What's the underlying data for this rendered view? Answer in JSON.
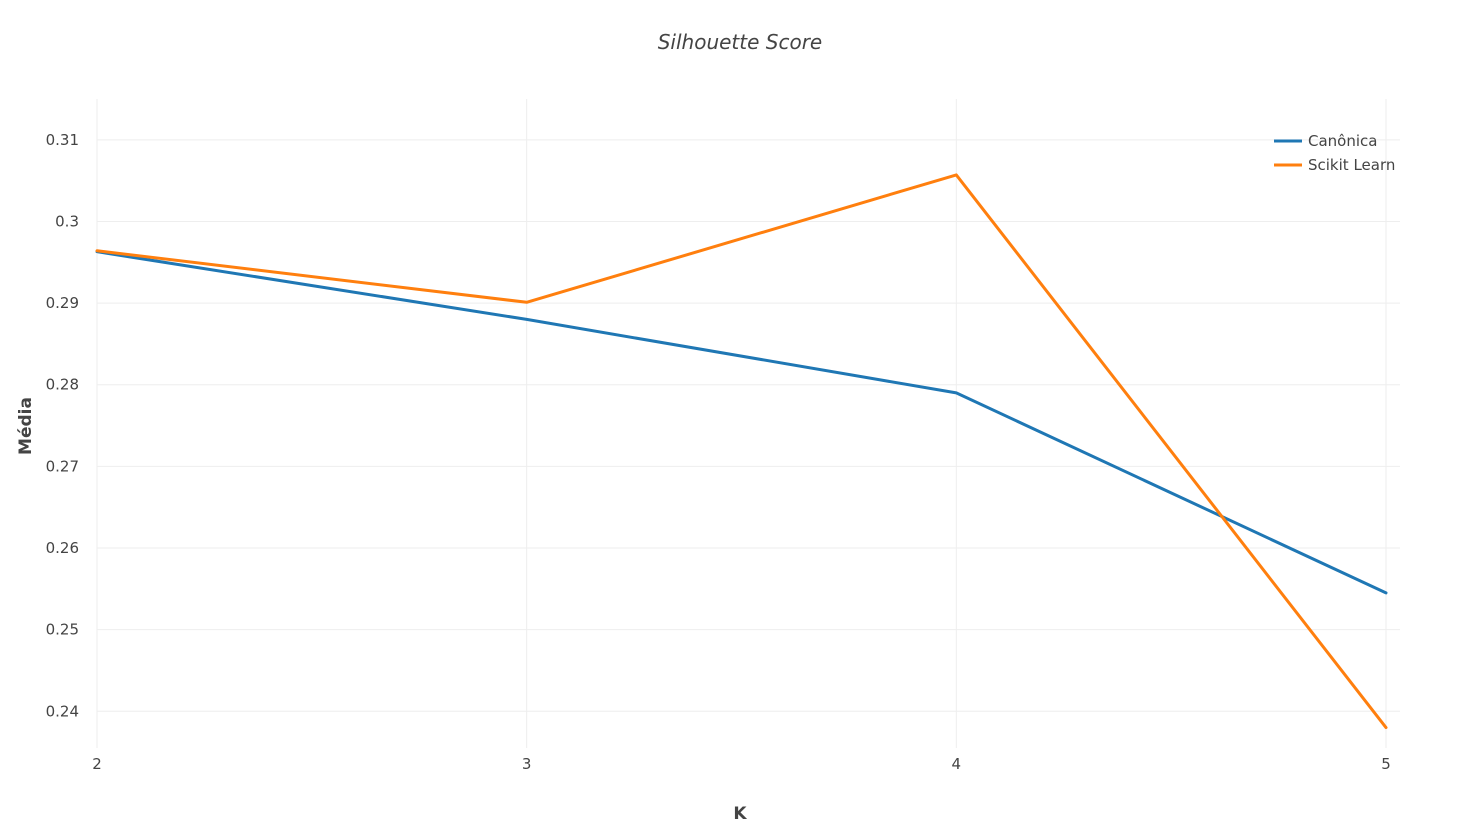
{
  "chart_data": {
    "type": "line",
    "title": "Silhouette Score",
    "xlabel": "K",
    "ylabel": "Média",
    "x": [
      2,
      3,
      4,
      5
    ],
    "x_ticks": [
      "2",
      "3",
      "4",
      "5"
    ],
    "y_ticks": [
      "0.24",
      "0.25",
      "0.26",
      "0.27",
      "0.28",
      "0.29",
      "0.3",
      "0.31"
    ],
    "ylim": [
      0.2355,
      0.315
    ],
    "xlim": [
      2,
      5
    ],
    "grid": true,
    "legend_position": "top-right",
    "series": [
      {
        "name": "Canônica",
        "color": "#1f77b4",
        "values": [
          0.2963,
          0.288,
          0.279,
          0.2545
        ]
      },
      {
        "name": "Scikit Learn",
        "color": "#ff7f0e",
        "values": [
          0.2964,
          0.2901,
          0.3057,
          0.238
        ]
      }
    ]
  }
}
